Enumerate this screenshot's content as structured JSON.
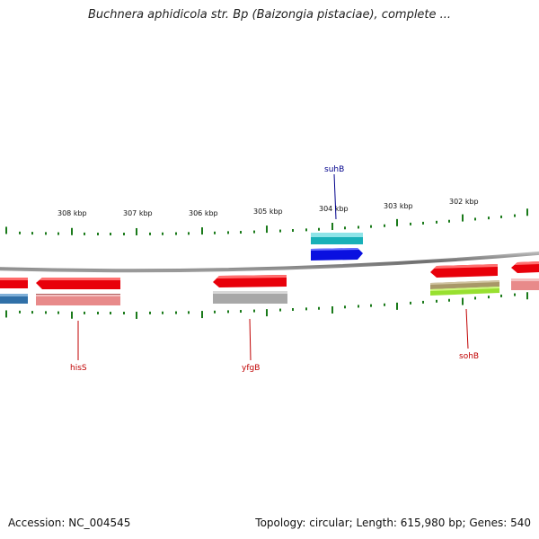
{
  "title": "Buchnera aphidicola str. Bp (Baizongia pistaciae), complete ...",
  "footer": {
    "accession": "Accession: NC_004545",
    "summary": "Topology: circular; Length: 615,980 bp; Genes: 540"
  },
  "scale_labels": [
    "308 kbp",
    "307 kbp",
    "306 kbp",
    "305 kbp",
    "304 kbp",
    "303 kbp",
    "302 kbp"
  ],
  "gene_labels": [
    {
      "name": "suhB",
      "color": "#00008b"
    },
    {
      "name": "hisS",
      "color": "#c00000"
    },
    {
      "name": "yfgB",
      "color": "#c00000"
    },
    {
      "name": "sohB",
      "color": "#c00000"
    }
  ],
  "colors": {
    "forward_cds": "#e00000",
    "forward_teal": "#20b8c0",
    "forward_blue": "#0a10e0",
    "reverse_cds": "#e8000a",
    "reverse_pink": "#e88a8a",
    "reverse_gray": "#a8a8a8",
    "reverse_olive": "#a89868",
    "reverse_lime": "#98e030",
    "reverse_steelblue": "#3070a8",
    "tick_green": "#1a7a1a",
    "backbone": "#808080"
  }
}
